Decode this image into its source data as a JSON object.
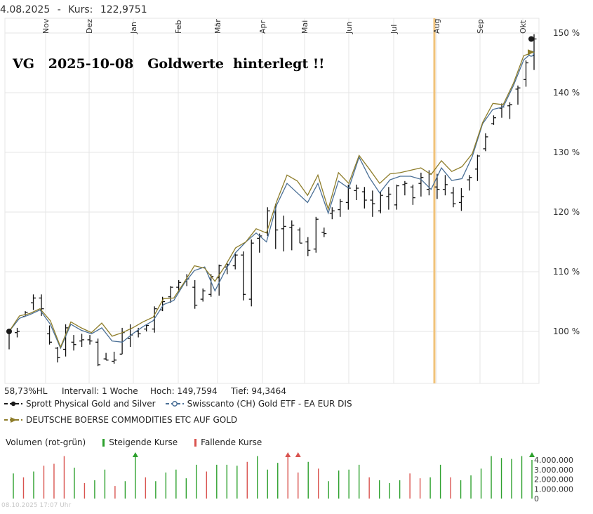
{
  "header": {
    "date": "4.08.2025",
    "sep": "-",
    "kurs_label": "Kurs:",
    "kurs_value": "122,9751"
  },
  "annotation": "VG   2025-10-08   Goldwerte  hinterlegt !!",
  "stats": {
    "hl": "58,73%HL",
    "interval": "Intervall: 1 Woche",
    "high": "Hoch: 149,7594",
    "low": "Tief: 94,3464"
  },
  "legend": [
    {
      "name": "Sprott Physical Gold and Silver",
      "color": "#1a1a1a",
      "marker": "circle"
    },
    {
      "name": "Swisscanto (CH) Gold ETF - EA EUR DIS",
      "color": "#4a6f96",
      "marker": "circle"
    },
    {
      "name": "DEUTSCHE BOERSE COMMODITIES ETC AUF GOLD",
      "color": "#8e7d2a",
      "marker": "triangle"
    }
  ],
  "volume_legend": {
    "title": "Volumen (rot-grün)",
    "up": "Steigende Kurse",
    "down": "Fallende Kurse",
    "up_color": "#2ca02c",
    "down_color": "#d9534f"
  },
  "footer": "08.10.2025 17:07 Uhr",
  "colors": {
    "grid": "#e6e6e6",
    "highlight": "#f0c27a",
    "bars": "#111111"
  },
  "chart_data": {
    "type": "line",
    "x_labels": [
      "Nov",
      "Dez",
      "Jan",
      "Feb",
      "Mär",
      "Apr",
      "Mai",
      "Jun",
      "Jul",
      "Aug",
      "Sep",
      "Okt"
    ],
    "y_ticks": [
      "100 %",
      "110 %",
      "120 %",
      "130 %",
      "140 %",
      "150 %"
    ],
    "ylim": [
      91,
      152
    ],
    "highlight_week": 32,
    "series": [
      {
        "name": "Swisscanto (CH) Gold ETF - EA EUR DIS",
        "values": [
          100,
          102.2,
          102.8,
          103.6,
          101.2,
          97.2,
          101.2,
          100.2,
          99.6,
          100.6,
          98.4,
          98.2,
          99.6,
          100.8,
          101.8,
          104.5,
          105.2,
          108,
          110.2,
          110.8,
          106.8,
          110.2,
          113.2,
          115,
          116.5,
          115,
          121.2,
          124.8,
          123.2,
          121.6,
          124.8,
          119.8,
          125.2,
          124,
          129.2,
          125.8,
          123.2,
          125.4,
          126,
          126,
          125.5,
          123.8,
          127.4,
          125.3,
          125.6,
          129.3,
          134.8,
          137.2,
          137.6,
          141.2,
          145.5,
          147
        ]
      },
      {
        "name": "DEUTSCHE BOERSE COMMODITIES ETC AUF GOLD",
        "values": [
          100,
          102.6,
          103,
          103.8,
          101.8,
          97.4,
          101.6,
          100.6,
          99.8,
          101.4,
          99.2,
          99.8,
          100.6,
          101.6,
          102.4,
          105.5,
          105.6,
          108.2,
          111,
          110.6,
          108.4,
          111,
          114,
          115,
          117.2,
          116.5,
          121.8,
          126.2,
          125.2,
          122.8,
          126.2,
          120.5,
          126.6,
          124.8,
          129.5,
          127.2,
          124.8,
          126.4,
          126.6,
          127,
          127.4,
          126.3,
          128.6,
          126.8,
          127.6,
          129.8,
          135,
          138.2,
          138,
          141.6,
          146.2,
          146.8
        ]
      },
      {
        "name": "Sprott Physical Gold and Silver",
        "ohlc": [
          [
            100,
            100.2,
            97,
            100
          ],
          [
            99.8,
            100.6,
            99,
            100
          ],
          [
            102.5,
            103.4,
            102.6,
            103.2
          ],
          [
            104.8,
            106.2,
            103.6,
            105.6
          ],
          [
            105.6,
            106.2,
            102.6,
            103.8
          ],
          [
            99.6,
            101,
            97.8,
            98.2
          ],
          [
            97.2,
            97.4,
            94.8,
            95.6
          ],
          [
            97,
            101.2,
            95.8,
            100.6
          ],
          [
            98.2,
            99.4,
            96.8,
            97.8
          ],
          [
            98.4,
            99.6,
            97.4,
            98.6
          ],
          [
            98.6,
            99.4,
            97.8,
            98.4
          ],
          [
            98.2,
            98.8,
            94.2,
            94.4
          ],
          [
            95.4,
            96.4,
            95.2,
            95.2
          ],
          [
            95,
            96.6,
            94.6,
            95.2
          ],
          [
            96.2,
            100.6,
            96.2,
            99.8
          ],
          [
            98.8,
            101.2,
            97.4,
            99.4
          ],
          [
            100,
            100.6,
            99,
            99.6
          ],
          [
            100.4,
            101.2,
            100,
            101
          ],
          [
            100.4,
            104.2,
            99.8,
            103.8
          ],
          [
            103.6,
            105.8,
            103.4,
            105
          ],
          [
            105.8,
            107.6,
            104.8,
            107.4
          ],
          [
            107.4,
            108.6,
            106.6,
            108.2
          ],
          [
            108.4,
            109.6,
            107.6,
            108.8
          ],
          [
            107.4,
            108.6,
            103.8,
            104.4
          ],
          [
            105.4,
            107.2,
            105,
            106.8
          ],
          [
            106.2,
            109.6,
            105.8,
            109.2
          ],
          [
            109,
            111.2,
            106,
            111
          ],
          [
            110.8,
            111.4,
            109.6,
            111.2
          ],
          [
            111,
            113,
            110.4,
            112.8
          ],
          [
            112.8,
            113.4,
            105.2,
            106.2
          ],
          [
            105.4,
            115.4,
            104.2,
            114.8
          ],
          [
            115.6,
            116.4,
            113.2,
            116
          ],
          [
            116.6,
            120.8,
            116,
            120.2
          ],
          [
            120,
            121.4,
            113.8,
            117
          ],
          [
            117.2,
            119.4,
            113.4,
            117.6
          ],
          [
            117.4,
            118.6,
            113.6,
            117.8
          ],
          [
            117,
            117.4,
            114.8,
            114.8
          ],
          [
            115,
            115.8,
            112.6,
            113.6
          ],
          [
            113.8,
            119.2,
            113.2,
            118.8
          ],
          [
            116.6,
            117.4,
            115.8,
            116.4
          ],
          [
            119.8,
            120.8,
            118.8,
            120.2
          ],
          [
            120.4,
            122.2,
            119.2,
            121.8
          ],
          [
            121.6,
            124.6,
            120.4,
            124
          ],
          [
            123.6,
            124.6,
            122,
            124
          ],
          [
            123.4,
            124.2,
            120.6,
            122
          ],
          [
            122,
            123.6,
            119.2,
            121.4
          ],
          [
            120.2,
            123.4,
            119.8,
            122.8
          ],
          [
            122.6,
            124.2,
            120.4,
            123
          ],
          [
            121.2,
            124.6,
            120.4,
            124.4
          ],
          [
            124.6,
            125.2,
            122.8,
            124.8
          ],
          [
            124.2,
            124.6,
            121.2,
            122.4
          ],
          [
            124.8,
            126.6,
            122.6,
            125.8
          ],
          [
            123.8,
            127,
            122.8,
            126.4
          ],
          [
            124.2,
            126.4,
            122.2,
            123.8
          ],
          [
            123.8,
            126.2,
            122.8,
            124.6
          ],
          [
            123.2,
            124.2,
            120.8,
            121.4
          ],
          [
            121.6,
            124,
            120.2,
            122.6
          ],
          [
            125.4,
            126.2,
            123.6,
            125.8
          ],
          [
            127.2,
            129.6,
            125.2,
            129.4
          ],
          [
            130.6,
            133.2,
            130.2,
            132.6
          ],
          [
            134.8,
            136.2,
            134.6,
            135.8
          ],
          [
            137.4,
            138.2,
            135.8,
            137.6
          ],
          [
            137.8,
            138.4,
            135.6,
            138
          ],
          [
            140.6,
            141.2,
            138,
            140.8
          ],
          [
            142.2,
            145.4,
            141,
            145
          ],
          [
            146.2,
            149.8,
            143.8,
            149
          ]
        ],
        "last": 149
      }
    ],
    "volume": {
      "axis_ticks": [
        "4.000.000",
        "3.000.000",
        "2.000.000",
        "1.000.000",
        "0"
      ],
      "ylim": [
        0,
        4200000
      ],
      "values": [
        2600000,
        2200000,
        2800000,
        3400000,
        3600000,
        4400000,
        3200000,
        1600000,
        1900000,
        3000000,
        1300000,
        1800000,
        4400000,
        2200000,
        1800000,
        2700000,
        3000000,
        2100000,
        3500000,
        2800000,
        3500000,
        3500000,
        3400000,
        3800000,
        4400000,
        3000000,
        3700000,
        4400000,
        2700000,
        3800000,
        3100000,
        1800000,
        2900000,
        3000000,
        3500000,
        2200000,
        1900000,
        1600000,
        1900000,
        2600000,
        2100000,
        2200000,
        3500000,
        2200000,
        1900000,
        2400000,
        3100000,
        4400000,
        4200000,
        4100000,
        4400000,
        4000000
      ],
      "up": [
        1,
        0,
        1,
        0,
        0,
        0,
        1,
        0,
        1,
        1,
        0,
        1,
        1,
        0,
        1,
        1,
        1,
        1,
        1,
        0,
        1,
        1,
        1,
        0,
        1,
        1,
        1,
        0,
        0,
        1,
        0,
        1,
        1,
        1,
        1,
        0,
        1,
        1,
        1,
        0,
        0,
        1,
        1,
        0,
        1,
        1,
        1,
        1,
        1,
        1,
        1,
        1
      ],
      "arrows": [
        12,
        27,
        28,
        51
      ]
    }
  }
}
